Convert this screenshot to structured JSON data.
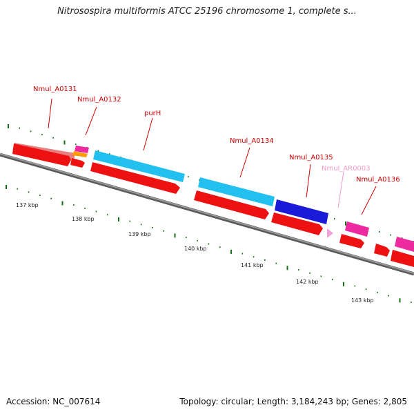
{
  "title": "Nitrosospira multiformis ATCC 25196 chromosome 1, complete s...",
  "footer": {
    "accession": "Accession: NC_007614",
    "summary": "Topology: circular; Length: 3,184,243 bp; Genes: 2,805"
  },
  "colors": {
    "backbone": "#808080",
    "cds": "#ee1111",
    "gene_salmon": "#e88080",
    "gene_cyan": "#22c0ee",
    "gene_blue": "#1a1ad8",
    "gene_magenta": "#ee2aa0",
    "rna_pink": "#f4a0d8",
    "orange": "#ff9a00",
    "tick": "#147014",
    "label_red": "#cc0000",
    "label_pink": "#f29cc9"
  },
  "genes": [
    {
      "name": "Nmul_A0131",
      "color": "label_red"
    },
    {
      "name": "Nmul_A0132",
      "color": "label_red"
    },
    {
      "name": "purH",
      "color": "label_red"
    },
    {
      "name": "Nmul_A0134",
      "color": "label_red"
    },
    {
      "name": "Nmul_A0135",
      "color": "label_red"
    },
    {
      "name": "Nmul_AR0003",
      "color": "label_pink"
    },
    {
      "name": "Nmul_A0136",
      "color": "label_red"
    }
  ],
  "scale_labels": [
    "137 kbp",
    "138 kbp",
    "139 kbp",
    "140 kbp",
    "141 kbp",
    "142 kbp",
    "143 kbp"
  ]
}
